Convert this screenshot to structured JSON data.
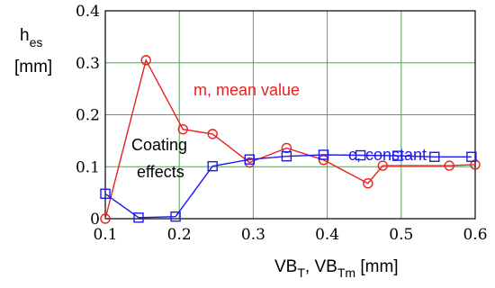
{
  "chart_data": {
    "type": "line",
    "xlabel": {
      "base1": "VB",
      "sub1": "T",
      "sep": ", ",
      "base2": "VB",
      "sub2": "Tm",
      "unit": " [mm]"
    },
    "ylabel": {
      "base": "h",
      "sub": "es",
      "unit": "[mm]"
    },
    "xlim": [
      0.1,
      0.6
    ],
    "ylim": [
      0,
      0.4
    ],
    "x_ticks": [
      "0.1",
      "0.2",
      "0.3",
      "0.4",
      "0.5",
      "0.6"
    ],
    "y_ticks": [
      "0",
      "0.1",
      "0.2",
      "0.3",
      "0.4"
    ],
    "grid": true,
    "series": [
      {
        "label": "m, mean value",
        "color": "#e8211f",
        "marker": "circle",
        "points": [
          [
            0.1,
            0.0
          ],
          [
            0.155,
            0.305
          ],
          [
            0.205,
            0.172
          ],
          [
            0.245,
            0.163
          ],
          [
            0.295,
            0.108
          ],
          [
            0.345,
            0.136
          ],
          [
            0.395,
            0.113
          ],
          [
            0.455,
            0.068
          ],
          [
            0.475,
            0.102
          ],
          [
            0.565,
            0.102
          ],
          [
            0.6,
            0.104
          ]
        ]
      },
      {
        "label": "c, constant",
        "color": "#1a1aee",
        "marker": "square",
        "points": [
          [
            0.1,
            0.048
          ],
          [
            0.145,
            0.002
          ],
          [
            0.195,
            0.004
          ],
          [
            0.245,
            0.101
          ],
          [
            0.295,
            0.114
          ],
          [
            0.345,
            0.12
          ],
          [
            0.395,
            0.123
          ],
          [
            0.445,
            0.122
          ],
          [
            0.495,
            0.121
          ],
          [
            0.545,
            0.119
          ],
          [
            0.595,
            0.119
          ]
        ]
      }
    ],
    "annotation": {
      "line1": "Coating",
      "line2": "effects"
    }
  }
}
